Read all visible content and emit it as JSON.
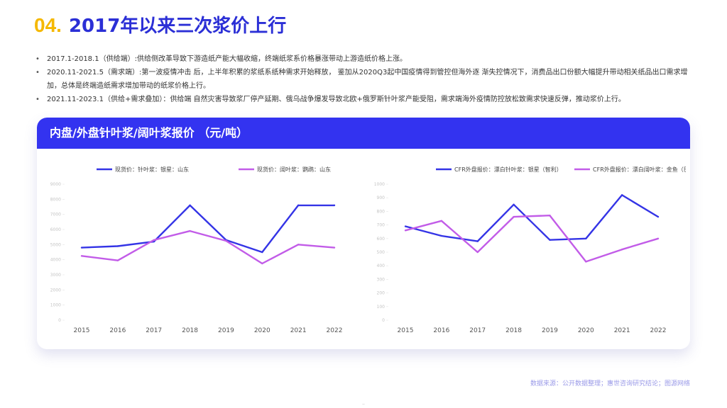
{
  "page": {
    "number": "04.",
    "title": "2017年以来三次浆价上行",
    "bullets": [
      "2017.1-2018.1（供给端）:供给侧改革导致下游造纸产能大幅收缩，终端纸浆系价格暴涨带动上游造纸价格上涨。",
      "2020.11-2021.5（需求端）:第一波疫情冲击  后，上半年积累的浆纸系纸种需求开始释放，   鉴加从2020Q3起中国疫情得到管控但海外逐  渐失控情况下，消费品出口份额大幅提升带动相关纸品出口需求增加，总体是终端造纸需求增加带动的纸浆价格上行。",
      "2021.11-2023.1（供给+需求叠加）：供给端 自然灾害导致浆厂停产延期、俄乌战争爆发导致北欧+俄罗斯针叶浆产能受阻，需求端海外疫情防控放松致需求快速反弹，推动浆价上行。"
    ],
    "card_title": "内盘/外盘针叶浆/阔叶浆报价 （元/吨）",
    "source": "数据来源：公开数据整理；惠世咨询研究结论；图源网络"
  },
  "colors": {
    "series1": "#3434e6",
    "series2": "#c25ce8",
    "accent_yellow": "#f5b800",
    "title_blue": "#2b2fd6"
  },
  "chart_data": [
    {
      "type": "line",
      "x": [
        "2015",
        "2016",
        "2017",
        "2018",
        "2019",
        "2020",
        "2021",
        "2022"
      ],
      "series": [
        {
          "name": "现货价：针叶浆：银星：山东",
          "values": [
            4800,
            4900,
            5200,
            7600,
            5300,
            4500,
            7600,
            7600
          ]
        },
        {
          "name": "现货价：阔叶浆：鹦鹉：山东",
          "values": [
            4250,
            3950,
            5300,
            5900,
            5250,
            3750,
            5000,
            4800
          ]
        }
      ],
      "yticks": [
        0,
        1000,
        2000,
        3000,
        4000,
        5000,
        6000,
        7000,
        8000,
        9000
      ],
      "ylim": [
        0,
        9000
      ],
      "legend": "top"
    },
    {
      "type": "line",
      "x": [
        "2015",
        "2016",
        "2017",
        "2018",
        "2019",
        "2020",
        "2021",
        "2022"
      ],
      "series": [
        {
          "name": "CFR外盘报价：漂白针叶浆：银星（智利）",
          "values": [
            690,
            620,
            580,
            850,
            590,
            600,
            920,
            760
          ]
        },
        {
          "name": "CFR外盘报价：漂白阔叶浆：金鱼（巴西）",
          "values": [
            660,
            730,
            500,
            760,
            770,
            430,
            520,
            600
          ]
        }
      ],
      "yticks": [
        0,
        100,
        200,
        300,
        400,
        500,
        600,
        700,
        800,
        900,
        1000
      ],
      "ylim": [
        0,
        1000
      ],
      "legend": "top"
    }
  ]
}
